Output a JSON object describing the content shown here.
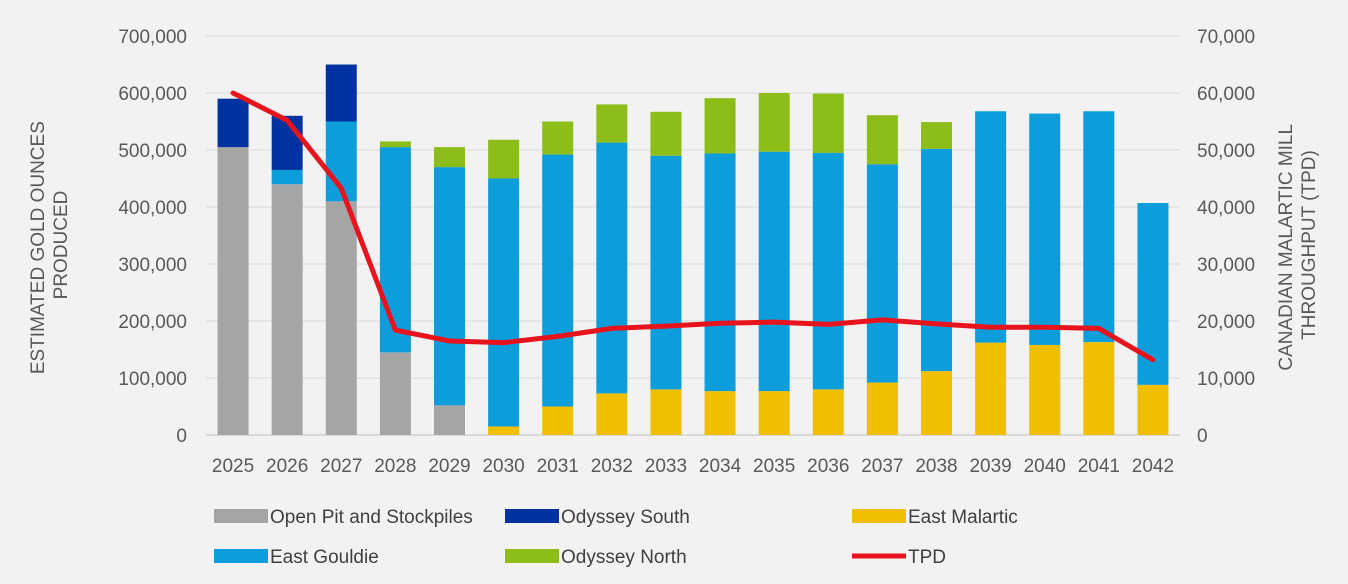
{
  "chart_data": {
    "type": "bar",
    "stacked": true,
    "categories": [
      "2025",
      "2026",
      "2027",
      "2028",
      "2029",
      "2030",
      "2031",
      "2032",
      "2033",
      "2034",
      "2035",
      "2036",
      "2037",
      "2038",
      "2039",
      "2040",
      "2041",
      "2042"
    ],
    "ylabel_lines": [
      "ESTIMATED GOLD OUNCES",
      "PRODUCED"
    ],
    "y2label_lines": [
      "CANADIAN MALARTIC MILL",
      "THROUGHPUT (TPD)"
    ],
    "ylim": [
      0,
      700000
    ],
    "y2lim": [
      0,
      70000
    ],
    "yticks": [
      "0",
      "100,000",
      "200,000",
      "300,000",
      "400,000",
      "500,000",
      "600,000",
      "700,000"
    ],
    "y2ticks": [
      "0",
      "10,000",
      "20,000",
      "30,000",
      "40,000",
      "50,000",
      "60,000",
      "70,000"
    ],
    "grid": true,
    "legend_position": "bottom",
    "series": [
      {
        "name": "Open Pit and Stockpiles",
        "color": "#a5a5a5",
        "values": [
          505000,
          440000,
          410000,
          145000,
          52000,
          0,
          0,
          0,
          0,
          0,
          0,
          0,
          0,
          0,
          0,
          0,
          0,
          0
        ]
      },
      {
        "name": "East Malartic",
        "color": "#f0c000",
        "values": [
          0,
          0,
          0,
          0,
          0,
          15000,
          50000,
          73000,
          80000,
          77000,
          77000,
          80000,
          92000,
          112000,
          162000,
          158000,
          163000,
          88000
        ]
      },
      {
        "name": "East Gouldie",
        "color": "#0d9ddb",
        "values": [
          0,
          25000,
          140000,
          360000,
          418000,
          435000,
          442000,
          440000,
          410000,
          417000,
          420000,
          415000,
          383000,
          390000,
          406000,
          406000,
          405000,
          319000
        ]
      },
      {
        "name": "Odyssey South",
        "color": "#0033a0",
        "values": [
          85000,
          95000,
          100000,
          0,
          0,
          0,
          0,
          0,
          0,
          0,
          0,
          0,
          0,
          0,
          0,
          0,
          0,
          0
        ]
      },
      {
        "name": "Odyssey North",
        "color": "#8cbd19",
        "values": [
          0,
          0,
          0,
          10000,
          35000,
          68000,
          58000,
          67000,
          77000,
          97000,
          103000,
          104000,
          86000,
          47000,
          0,
          0,
          0,
          0
        ]
      }
    ],
    "line_series": {
      "name": "TPD",
      "color": "#e8141d",
      "axis": "right",
      "values": [
        60000,
        55200,
        43300,
        18400,
        16500,
        16200,
        17300,
        18700,
        19100,
        19600,
        19800,
        19400,
        20200,
        19500,
        18900,
        18900,
        18700,
        13200
      ]
    },
    "legend_order": [
      "Open Pit and Stockpiles",
      "Odyssey South",
      "East Malartic",
      "East Gouldie",
      "Odyssey North",
      "TPD"
    ]
  }
}
